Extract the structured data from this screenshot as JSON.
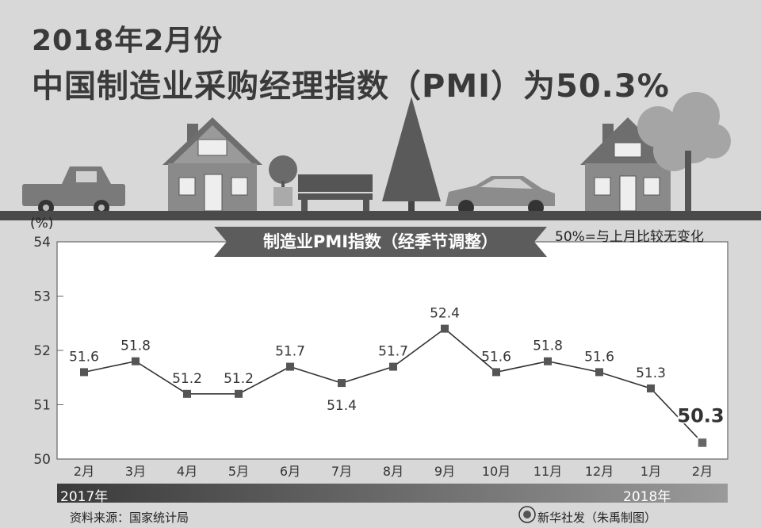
{
  "header": {
    "line1": "2018年2月份",
    "line2": "中国制造业采购经理指数（PMI）为50.3%"
  },
  "chart_data": {
    "type": "line",
    "title": "制造业PMI指数（经季节调整）",
    "unit_label": "(%)",
    "note": "50%=与上月比较无变化",
    "categories": [
      "2月",
      "3月",
      "4月",
      "5月",
      "6月",
      "7月",
      "8月",
      "9月",
      "10月",
      "11月",
      "12月",
      "1月",
      "2月"
    ],
    "series": [
      {
        "values": [
          51.6,
          51.8,
          51.2,
          51.2,
          51.7,
          51.4,
          51.7,
          52.4,
          51.6,
          51.8,
          51.6,
          51.3,
          50.3
        ]
      }
    ],
    "ylim": [
      50,
      54
    ],
    "yticks": [
      "50",
      "51",
      "52",
      "53",
      "54"
    ],
    "years": [
      "2017年",
      "2018年"
    ],
    "highlight_last": true,
    "grid": false
  },
  "footer": {
    "source": "资料来源：国家统计局",
    "credit": "新华社发（朱禹制图）"
  }
}
